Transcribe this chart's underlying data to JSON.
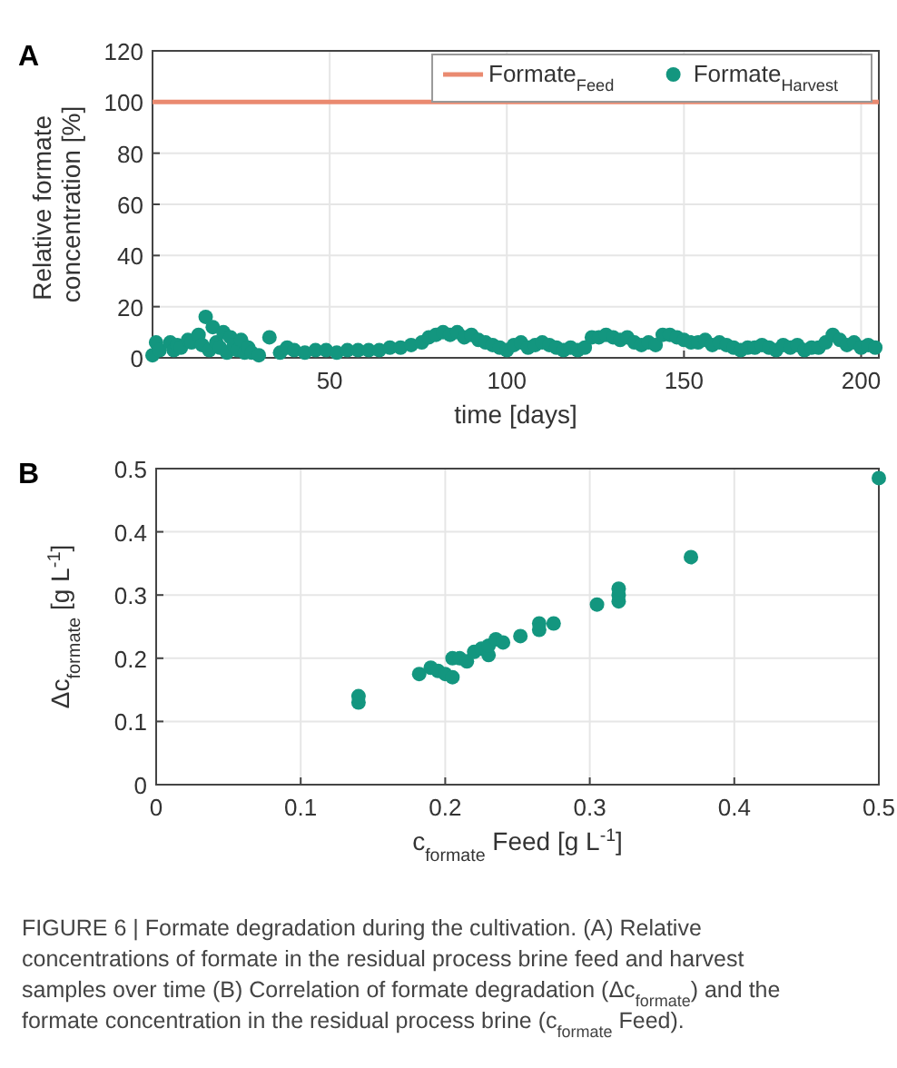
{
  "chart_data": [
    {
      "type": "scatter",
      "title": "A",
      "xlabel": "time [days]",
      "ylabel": "Relative formate concentration [%]",
      "xlim": [
        0,
        205
      ],
      "ylim": [
        0,
        120
      ],
      "xticks": [
        50,
        100,
        150,
        200
      ],
      "yticks": [
        0,
        20,
        40,
        60,
        80,
        100,
        120
      ],
      "grid": true,
      "legend": "top right",
      "series": [
        {
          "name": "Formate$_{Feed}$",
          "type": "line",
          "marker": "none",
          "color": "#ea8a70",
          "x": [
            0,
            205
          ],
          "values": [
            100,
            100
          ]
        },
        {
          "name": "Formate$_{Harvest}$",
          "marker": "circle",
          "color": "#13967f",
          "x": [
            0,
            1,
            2,
            5,
            6,
            7,
            8,
            10,
            11,
            13,
            14,
            15,
            16,
            17,
            18,
            19,
            20,
            21,
            22,
            23,
            24,
            25,
            26,
            27,
            28,
            30,
            33,
            36,
            38,
            40,
            43,
            46,
            49,
            52,
            55,
            58,
            61,
            64,
            67,
            70,
            73,
            76,
            78,
            80,
            82,
            84,
            86,
            88,
            90,
            92,
            94,
            96,
            98,
            100,
            102,
            104,
            106,
            108,
            110,
            112,
            114,
            116,
            118,
            120,
            122,
            124,
            126,
            128,
            130,
            132,
            134,
            136,
            138,
            140,
            142,
            144,
            146,
            148,
            150,
            152,
            154,
            156,
            158,
            160,
            162,
            164,
            166,
            168,
            170,
            172,
            174,
            176,
            178,
            180,
            182,
            184,
            186,
            188,
            190,
            192,
            194,
            196,
            198,
            200,
            202,
            204
          ],
          "values": [
            1,
            6,
            3,
            6,
            3,
            5,
            4,
            7,
            6,
            9,
            5,
            16,
            3,
            12,
            6,
            4,
            10,
            2,
            8,
            5,
            3,
            7,
            2,
            4,
            2,
            1,
            8,
            2,
            4,
            3,
            2,
            3,
            3,
            2,
            3,
            3,
            3,
            3,
            4,
            4,
            5,
            6,
            8,
            9,
            10,
            9,
            10,
            8,
            9,
            7,
            6,
            5,
            4,
            3,
            5,
            6,
            4,
            5,
            6,
            5,
            4,
            3,
            4,
            3,
            4,
            8,
            8,
            9,
            8,
            7,
            8,
            6,
            5,
            6,
            5,
            9,
            9,
            8,
            7,
            6,
            6,
            7,
            5,
            6,
            5,
            4,
            3,
            4,
            4,
            5,
            4,
            3,
            5,
            4,
            5,
            3,
            4,
            4,
            6,
            9,
            7,
            5,
            6,
            4,
            5,
            4
          ]
        }
      ]
    },
    {
      "type": "scatter",
      "title": "B",
      "xlabel": "c$_{formate}$ Feed [g L$^{-1}$]",
      "ylabel": "Δc$_{formate}$ [g L$^{-1}$]",
      "xlim": [
        0,
        0.5
      ],
      "ylim": [
        0,
        0.5
      ],
      "xticks": [
        0,
        0.1,
        0.2,
        0.3,
        0.4,
        0.5
      ],
      "yticks": [
        0,
        0.1,
        0.2,
        0.3,
        0.4,
        0.5
      ],
      "grid": true,
      "marker": "circle",
      "series": [
        {
          "color": "#13967f",
          "x": [
            0.14,
            0.14,
            0.182,
            0.19,
            0.195,
            0.2,
            0.205,
            0.205,
            0.21,
            0.215,
            0.22,
            0.225,
            0.23,
            0.23,
            0.235,
            0.24,
            0.252,
            0.265,
            0.265,
            0.275,
            0.305,
            0.32,
            0.32,
            0.32,
            0.37,
            0.5
          ],
          "values": [
            0.13,
            0.14,
            0.175,
            0.185,
            0.18,
            0.175,
            0.17,
            0.2,
            0.2,
            0.195,
            0.21,
            0.215,
            0.205,
            0.22,
            0.23,
            0.225,
            0.235,
            0.255,
            0.245,
            0.255,
            0.285,
            0.29,
            0.3,
            0.31,
            0.36,
            0.485
          ]
        }
      ],
      "annotations": [
        "FIGURE 6 | Formate degradation during the cultivation. (A) Relative concentrations of formate in the residual process brine feed and harvest samples over time (B) Correlation of formate degradation (Δc$_{formate}$) and the formate concentration in the residual process brine (c$_{formate}$ Feed)."
      ]
    }
  ]
}
